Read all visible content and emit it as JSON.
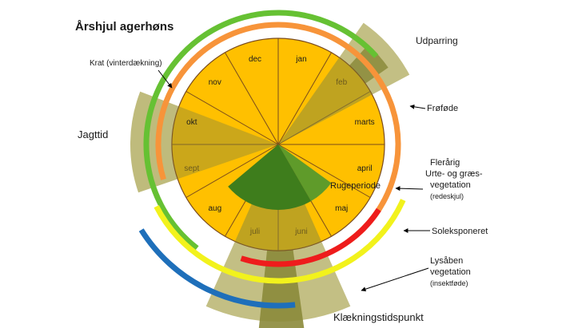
{
  "title": "Årshjul agerhøns",
  "months": [
    {
      "label": "jan",
      "text_color": "#1a1a1a"
    },
    {
      "label": "feb",
      "text_color": "#6b5a1e"
    },
    {
      "label": "marts",
      "text_color": "#1a1a1a"
    },
    {
      "label": "april",
      "text_color": "#1a1a1a"
    },
    {
      "label": "maj",
      "text_color": "#1a1a1a"
    },
    {
      "label": "juni",
      "text_color": "#6b5a1e"
    },
    {
      "label": "juli",
      "text_color": "#6b5a1e"
    },
    {
      "label": "aug",
      "text_color": "#1a1a1a"
    },
    {
      "label": "sept",
      "text_color": "#6b5a1e"
    },
    {
      "label": "okt",
      "text_color": "#1a1a1a"
    },
    {
      "label": "nov",
      "text_color": "#1a1a1a"
    },
    {
      "label": "dec",
      "text_color": "#1a1a1a"
    }
  ],
  "inner_label": "Rugeperiode",
  "labels": {
    "udparring": "Udparring",
    "jagttid": "Jagttid",
    "krat": "Krat (vinterdækning)",
    "frofode": "Frøføde",
    "flerarig_1": "Flerårig",
    "flerarig_2": "Urte- og græs-",
    "flerarig_3": "vegetation",
    "flerarig_4": "(redeskjul)",
    "soleksponeret": "Soleksponeret",
    "lysaben_1": "Lysåben",
    "lysaben_2": "vegetation",
    "lysaben_3": "(insektføde)",
    "klaekning": "Klækningstidspunkt"
  },
  "colors": {
    "wheel_fill": "#ffc000",
    "wheel_line": "#7a4b1c",
    "khaki": "#b8b46e",
    "khaki_dark": "#8b8a3a",
    "green_dark": "#3e7d1c",
    "green_mid": "#5f9b2a",
    "ring_green": "#66c133",
    "ring_orange": "#f7943a",
    "ring_red": "#ee1c1c",
    "ring_yellow": "#f2f21c",
    "ring_blue": "#1e6fba",
    "arrow": "#000000"
  }
}
